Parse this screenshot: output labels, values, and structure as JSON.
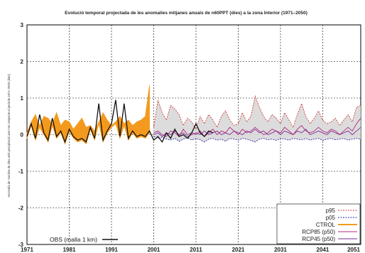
{
  "chart_data": {
    "type": "line",
    "title": "Evolució temporal projectada de les anomalies mitjanes anuals de n60PPT (dies) a la zona Interior (1971–2050)",
    "ylabel": "Anomalia de 'nombre de dies amb precipitació ≥60 mm' respecte el període 1971–2000 (dies)",
    "xlabel": "",
    "xlim": [
      1971,
      2050
    ],
    "ylim": [
      -3,
      3
    ],
    "y_ticks": [
      "3",
      "2",
      "1",
      "0",
      "-1",
      "-2",
      "-3"
    ],
    "y_tick_values": [
      3,
      2,
      1,
      0,
      -1,
      -2,
      -3
    ],
    "x_ticks": [
      "1971",
      "1981",
      "1991",
      "2001",
      "2011",
      "2021",
      "2031",
      "2041",
      "2051"
    ],
    "x_tick_values": [
      1971,
      1981,
      1991,
      2001,
      2011,
      2021,
      2031,
      2041,
      2051
    ],
    "grid": true,
    "legend_placement": "bottom-right",
    "series": [
      {
        "name": "p95",
        "color": "#d23a3a",
        "style": "dashed",
        "x": [
          2001,
          2002,
          2003,
          2004,
          2005,
          2006,
          2007,
          2008,
          2009,
          2010,
          2011,
          2012,
          2013,
          2014,
          2015,
          2016,
          2017,
          2018,
          2019,
          2020,
          2021,
          2022,
          2023,
          2024,
          2025,
          2026,
          2027,
          2028,
          2029,
          2030,
          2031,
          2032,
          2033,
          2034,
          2035,
          2036,
          2037,
          2038,
          2039,
          2040,
          2041,
          2042,
          2043,
          2044,
          2045,
          2046,
          2047,
          2048,
          2049,
          2050
        ],
        "values": [
          0.2,
          0.95,
          0.6,
          0.4,
          0.8,
          0.7,
          0.55,
          0.25,
          0.45,
          0.35,
          0.15,
          0.5,
          0.3,
          0.55,
          0.4,
          0.2,
          0.5,
          0.65,
          0.4,
          0.25,
          0.3,
          0.6,
          0.35,
          0.5,
          1.05,
          0.75,
          0.5,
          0.35,
          0.55,
          0.45,
          0.3,
          0.6,
          0.4,
          0.2,
          0.55,
          0.85,
          0.5,
          0.3,
          0.45,
          0.65,
          0.4,
          0.3,
          0.35,
          0.45,
          0.25,
          0.4,
          0.55,
          0.35,
          0.75,
          0.8
        ]
      },
      {
        "name": "p05",
        "color": "#2a2aa8",
        "style": "dashed",
        "x": [
          2001,
          2002,
          2003,
          2004,
          2005,
          2006,
          2007,
          2008,
          2009,
          2010,
          2011,
          2012,
          2013,
          2014,
          2015,
          2016,
          2017,
          2018,
          2019,
          2020,
          2021,
          2022,
          2023,
          2024,
          2025,
          2026,
          2027,
          2028,
          2029,
          2030,
          2031,
          2032,
          2033,
          2034,
          2035,
          2036,
          2037,
          2038,
          2039,
          2040,
          2041,
          2042,
          2043,
          2044,
          2045,
          2046,
          2047,
          2048,
          2049,
          2050
        ],
        "values": [
          -0.05,
          -0.1,
          -0.08,
          -0.12,
          -0.15,
          -0.1,
          -0.18,
          -0.12,
          -0.08,
          -0.15,
          -0.1,
          -0.14,
          -0.2,
          -0.12,
          -0.1,
          -0.15,
          -0.12,
          -0.18,
          -0.1,
          -0.12,
          -0.15,
          -0.1,
          -0.12,
          -0.16,
          -0.2,
          -0.12,
          -0.1,
          -0.14,
          -0.12,
          -0.16,
          -0.1,
          -0.12,
          -0.15,
          -0.1,
          -0.12,
          -0.14,
          -0.1,
          -0.15,
          -0.12,
          -0.1,
          -0.16,
          -0.12,
          -0.1,
          -0.14,
          -0.12,
          -0.1,
          -0.15,
          -0.12,
          -0.1,
          -0.12
        ]
      },
      {
        "name": "CTROL",
        "color": "#f39a1e",
        "style": "filled",
        "x": [
          1971,
          1972,
          1973,
          1974,
          1975,
          1976,
          1977,
          1978,
          1979,
          1980,
          1981,
          1982,
          1983,
          1984,
          1985,
          1986,
          1987,
          1988,
          1989,
          1990,
          1991,
          1992,
          1993,
          1994,
          1995,
          1996,
          1997,
          1998,
          1999,
          2000
        ],
        "values": [
          0.05,
          0.35,
          0.55,
          0.25,
          0.5,
          0.45,
          0.3,
          0.6,
          0.25,
          0.4,
          0.35,
          0.15,
          0.3,
          0.45,
          0.2,
          0.25,
          0.1,
          0.35,
          0.6,
          0.4,
          0.25,
          0.35,
          0.5,
          0.3,
          0.4,
          0.25,
          0.35,
          0.4,
          0.5,
          1.35
        ]
      },
      {
        "name": "RCP85 (p50)",
        "color": "#b0287a",
        "style": "solid",
        "x": [
          2001,
          2002,
          2003,
          2004,
          2005,
          2006,
          2007,
          2008,
          2009,
          2010,
          2011,
          2012,
          2013,
          2014,
          2015,
          2016,
          2017,
          2018,
          2019,
          2020,
          2021,
          2022,
          2023,
          2024,
          2025,
          2026,
          2027,
          2028,
          2029,
          2030,
          2031,
          2032,
          2033,
          2034,
          2035,
          2036,
          2037,
          2038,
          2039,
          2040,
          2041,
          2042,
          2043,
          2044,
          2045,
          2046,
          2047,
          2048,
          2049,
          2050
        ],
        "values": [
          0.05,
          0.1,
          0.0,
          -0.05,
          0.1,
          0.05,
          -0.05,
          0.15,
          0.0,
          0.05,
          0.0,
          0.1,
          -0.05,
          0.05,
          0.15,
          0.0,
          0.1,
          0.05,
          0.2,
          0.1,
          0.0,
          0.15,
          0.05,
          0.1,
          0.2,
          0.1,
          0.0,
          0.05,
          0.15,
          0.1,
          0.05,
          0.2,
          0.1,
          0.0,
          0.15,
          0.25,
          0.1,
          0.05,
          0.1,
          0.2,
          0.1,
          0.05,
          0.15,
          0.1,
          0.0,
          0.1,
          0.2,
          0.1,
          0.3,
          0.45
        ]
      },
      {
        "name": "RCP45 (p50)",
        "color": "#7a2a9a",
        "style": "solid",
        "x": [
          2001,
          2002,
          2003,
          2004,
          2005,
          2006,
          2007,
          2008,
          2009,
          2010,
          2011,
          2012,
          2013,
          2014,
          2015,
          2016,
          2017,
          2018,
          2019,
          2020,
          2021,
          2022,
          2023,
          2024,
          2025,
          2026,
          2027,
          2028,
          2029,
          2030,
          2031,
          2032,
          2033,
          2034,
          2035,
          2036,
          2037,
          2038,
          2039,
          2040,
          2041,
          2042,
          2043,
          2044,
          2045,
          2046,
          2047,
          2048,
          2049,
          2050
        ],
        "values": [
          0.0,
          0.05,
          -0.05,
          0.05,
          0.0,
          0.1,
          0.0,
          0.05,
          -0.05,
          0.0,
          0.05,
          0.0,
          0.1,
          0.0,
          0.05,
          0.1,
          0.0,
          0.05,
          0.0,
          0.1,
          0.05,
          0.0,
          0.1,
          0.05,
          0.15,
          0.05,
          0.1,
          0.0,
          0.05,
          0.1,
          0.0,
          0.1,
          0.05,
          0.0,
          0.1,
          0.05,
          0.15,
          0.0,
          0.05,
          0.1,
          0.05,
          0.0,
          0.1,
          0.05,
          0.0,
          0.05,
          0.1,
          0.0,
          0.1,
          0.2
        ]
      },
      {
        "name": "OBS (malla 1 km)",
        "color": "#111111",
        "style": "solid",
        "x": [
          1971,
          1972,
          1973,
          1974,
          1975,
          1976,
          1977,
          1978,
          1979,
          1980,
          1981,
          1982,
          1983,
          1984,
          1985,
          1986,
          1987,
          1988,
          1989,
          1990,
          1991,
          1992,
          1993,
          1994,
          1995,
          1996,
          1997,
          1998,
          1999,
          2000,
          2001,
          2002,
          2003,
          2004,
          2005,
          2006,
          2007,
          2008,
          2009,
          2010,
          2011,
          2012,
          2013,
          2014,
          2015
        ],
        "values": [
          -0.05,
          0.3,
          -0.1,
          0.55,
          0.05,
          -0.15,
          0.45,
          -0.05,
          0.1,
          -0.2,
          0.15,
          -0.05,
          -0.15,
          -0.1,
          -0.2,
          0.2,
          -0.1,
          0.85,
          -0.15,
          0.1,
          0.3,
          0.95,
          -0.05,
          0.85,
          -0.1,
          0.1,
          -0.05,
          0.0,
          -0.05,
          0.1,
          -0.15,
          -0.05,
          -0.2,
          0.05,
          -0.1,
          0.15,
          -0.05,
          0.0,
          -0.1,
          0.05,
          0.3,
          0.05,
          -0.05,
          0.1,
          0.05
        ]
      }
    ]
  },
  "colors": {
    "band_fill": "#d8d8d8",
    "ctrol_fill": "#f39a1e",
    "grid": "#000000"
  }
}
